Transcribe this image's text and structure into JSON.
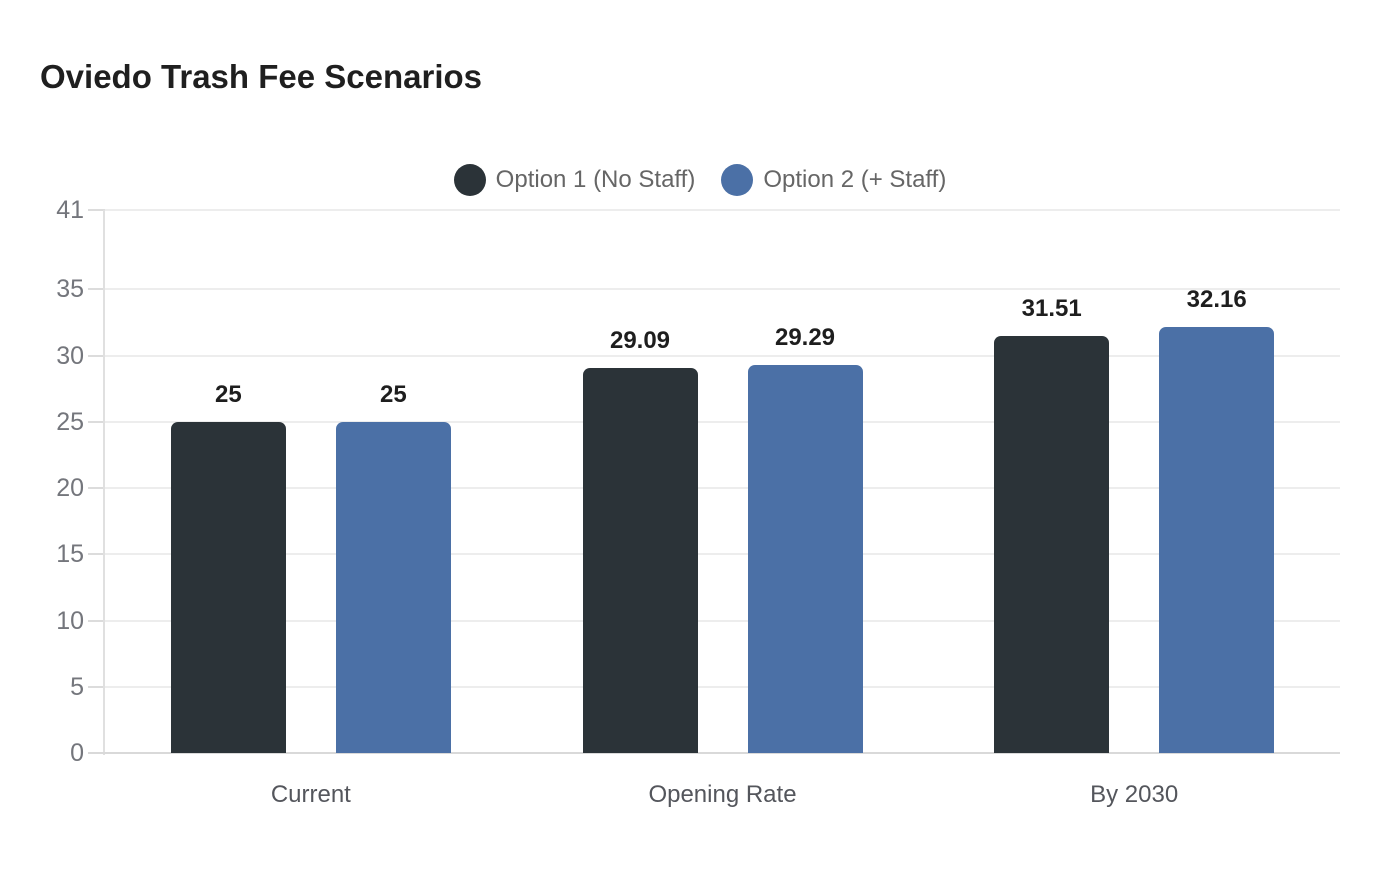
{
  "chart_data": {
    "type": "bar",
    "title": "Oviedo Trash Fee Scenarios",
    "categories": [
      "Current",
      "Opening Rate",
      "By 2030"
    ],
    "series": [
      {
        "name": "Option 1 (No Staff)",
        "color": "#2b3338",
        "values": [
          25,
          29.09,
          31.51
        ],
        "labels": [
          "25",
          "29.09",
          "31.51"
        ]
      },
      {
        "name": "Option 2 (+ Staff)",
        "color": "#4b70a6",
        "values": [
          25,
          29.29,
          32.16
        ],
        "labels": [
          "25",
          "29.29",
          "32.16"
        ]
      }
    ],
    "xlabel": "",
    "ylabel": "",
    "ylim": [
      0,
      41
    ],
    "yticks": [
      0,
      5,
      10,
      15,
      20,
      25,
      30,
      35,
      41
    ],
    "grid": true,
    "legend_position": "top-center"
  },
  "theme": {
    "background": "#ffffff",
    "grid_color": "#ededed",
    "axis_line_color": "#d9d9d9",
    "y_axis_line_color": "#e0e0e0",
    "tick_color": "#dcdcdc",
    "tick_label_color": "#74767c",
    "category_label_color": "#54565c",
    "legend_text_color": "#666666",
    "data_label_color": "#1e1e1e",
    "title_color": "#1f1f1f"
  }
}
